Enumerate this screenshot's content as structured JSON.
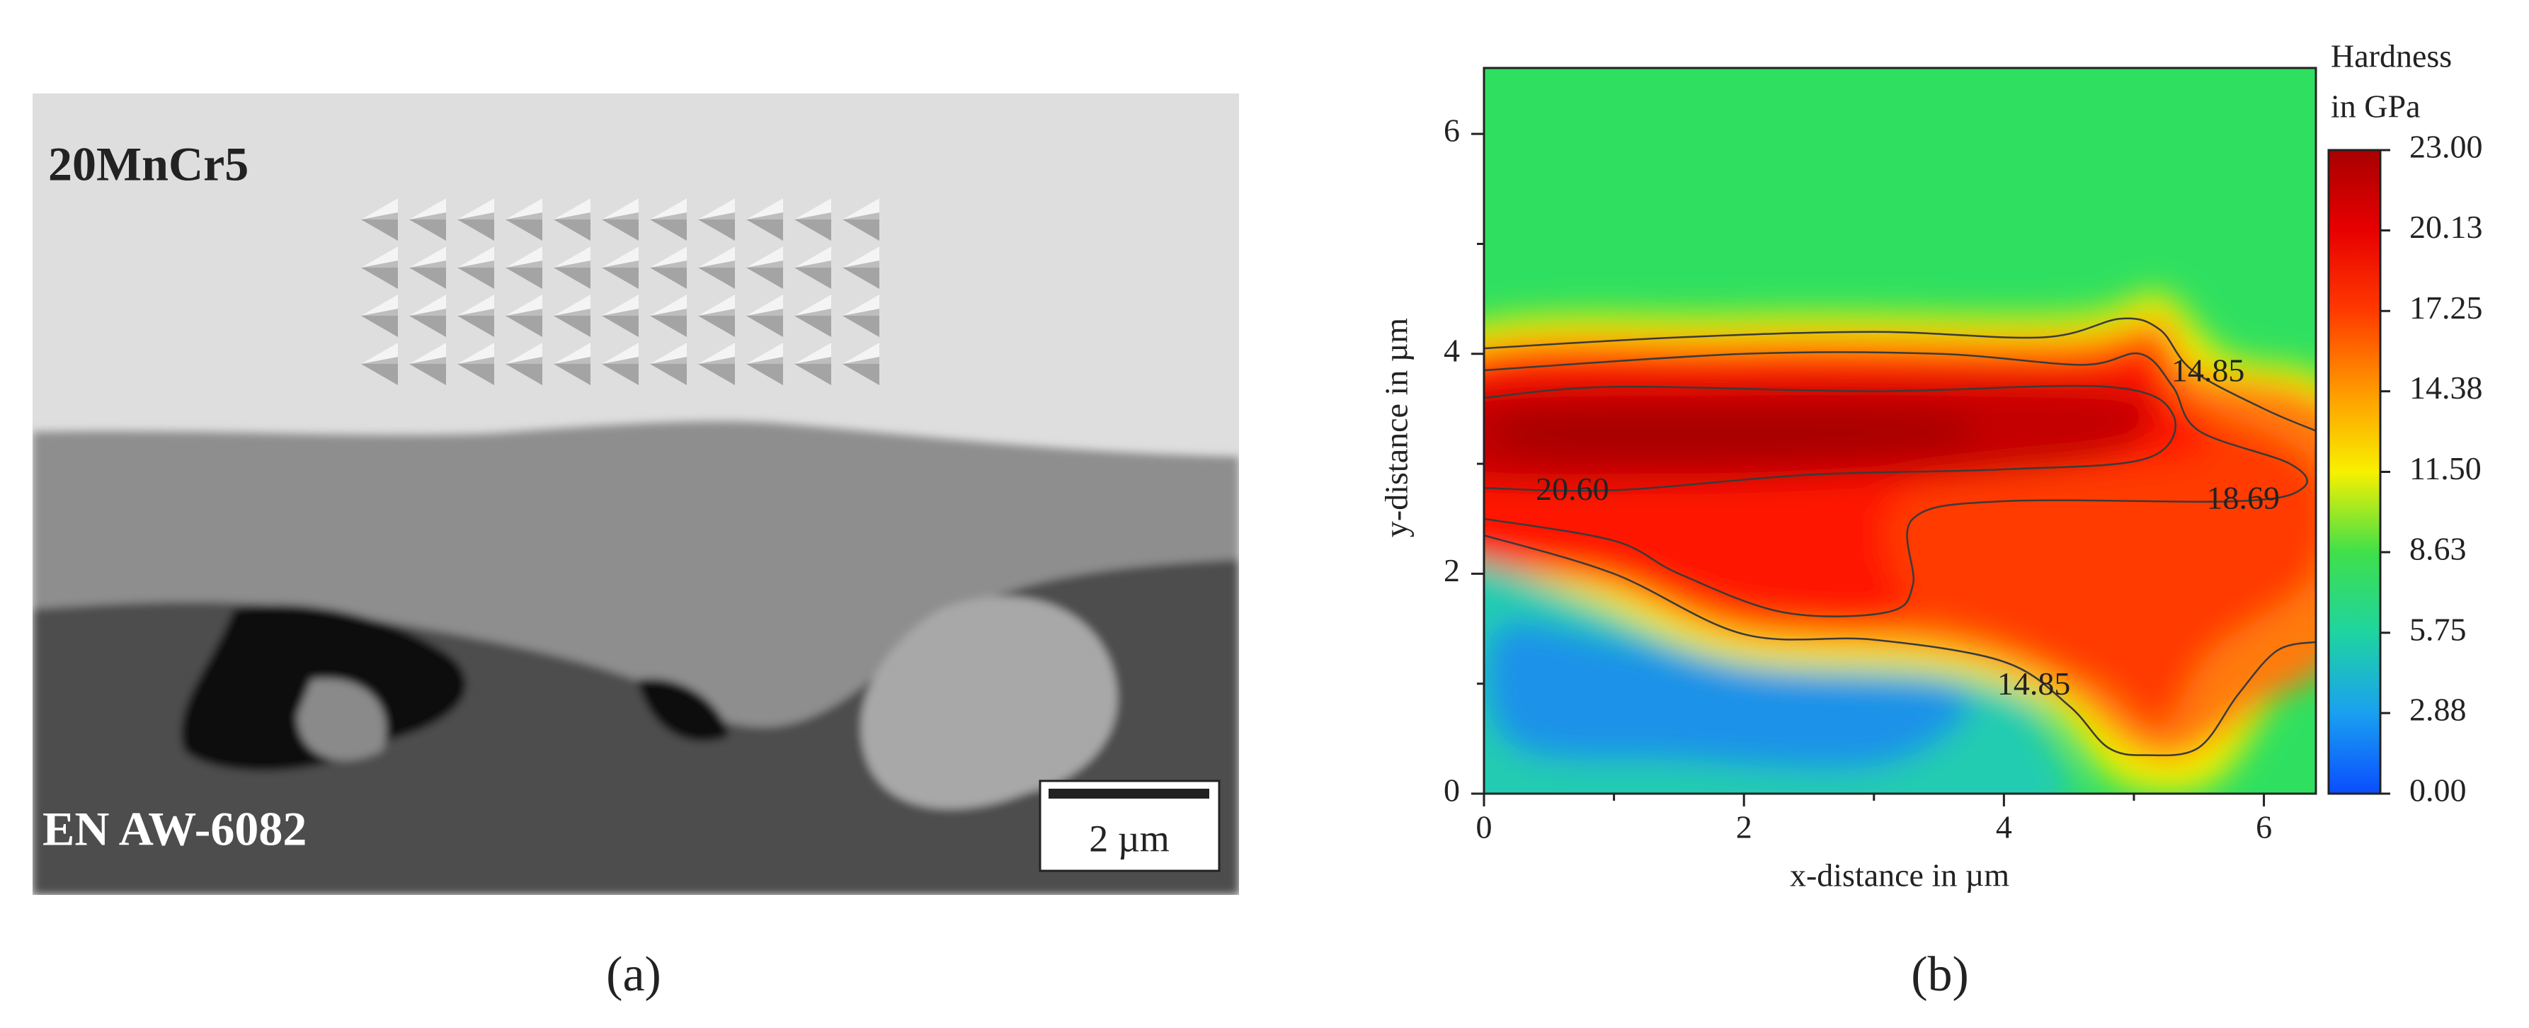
{
  "panel_a": {
    "caption": "(a)",
    "labels": [
      "20MnCr5",
      "EN AW-6082"
    ],
    "scale_bar": "2 µm"
  },
  "panel_b": {
    "caption": "(b)"
  },
  "chart_data": {
    "type": "contour",
    "xlabel": "x-distance in µm",
    "ylabel": "y-distance in µm",
    "xlim": [
      0,
      6.4
    ],
    "ylim": [
      0,
      6.6
    ],
    "xticks": [
      0,
      2,
      4,
      6
    ],
    "yticks": [
      0,
      2,
      4,
      6
    ],
    "xticks_minor": [
      1,
      3,
      5
    ],
    "yticks_minor": [
      1,
      3,
      5
    ],
    "colorbar": {
      "title": [
        "Hardness",
        "in GPa"
      ],
      "lim": [
        0,
        23
      ],
      "ticks": [
        {
          "value": 0,
          "label": "0.00"
        },
        2.88,
        5.75,
        8.63,
        {
          "value": 11.5,
          "label": "11.50"
        },
        14.38,
        17.25,
        20.13,
        {
          "value": 23,
          "label": "23.00"
        }
      ]
    },
    "contour_labels": [
      {
        "text": "14.85",
        "x": 5.57,
        "y": 3.82
      },
      {
        "text": "20.60",
        "x": 0.68,
        "y": 2.74
      },
      {
        "text": "18.69",
        "x": 5.84,
        "y": 2.66
      },
      {
        "text": "14.85",
        "x": 4.23,
        "y": 0.97
      }
    ]
  }
}
